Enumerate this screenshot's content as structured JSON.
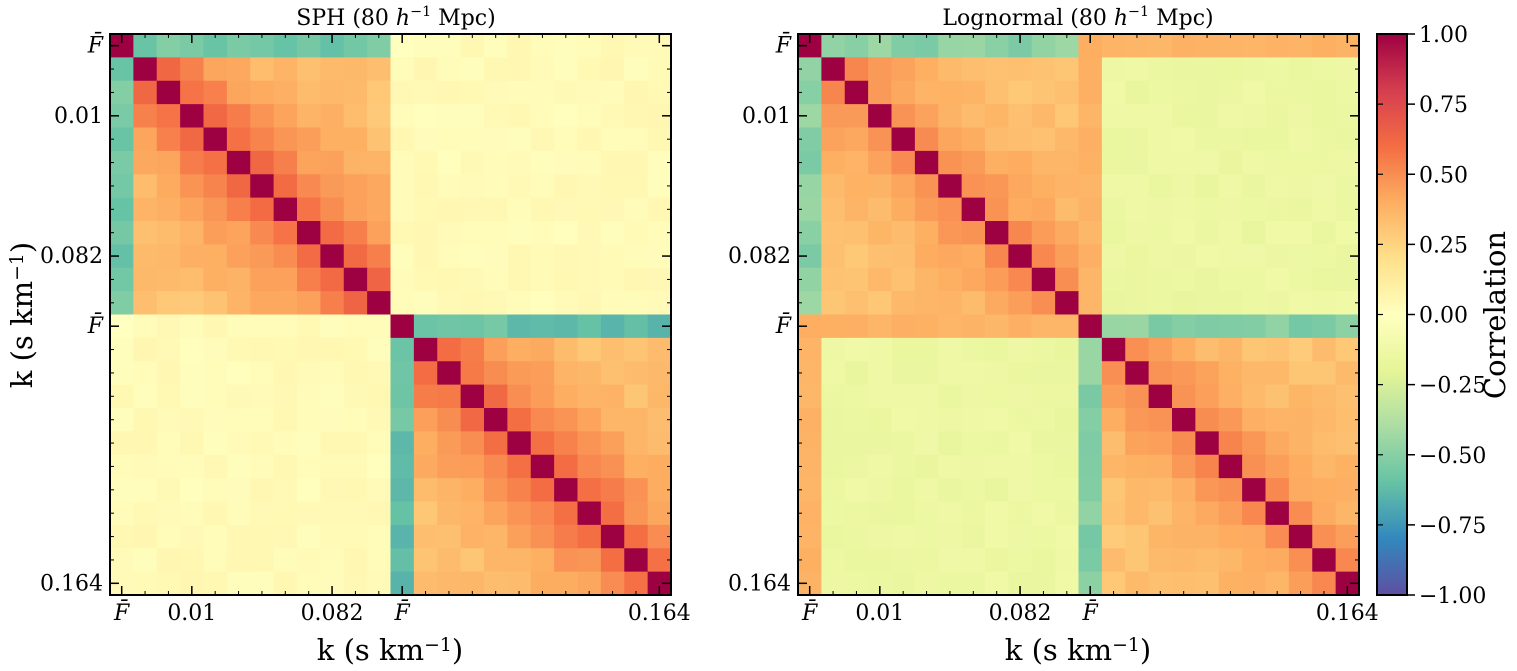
{
  "chart_data": [
    {
      "type": "heatmap",
      "title_parts": [
        "SPH (80 ",
        "h",
        "−1",
        " Mpc)"
      ],
      "xlabel_parts": [
        "k (s km",
        "−1",
        ")"
      ],
      "ylabel_parts": [
        "k (s km",
        "−1",
        ")"
      ],
      "tick_labels": [
        "F̄",
        "0.01",
        "0.082",
        "F̄",
        "0.164"
      ],
      "y_tick_labels": [
        "F̄",
        "0.01",
        "0.082",
        "F̄",
        "0.164"
      ],
      "blocks": 2,
      "cells_per_block": 12,
      "fbar_k_corr_block1": -0.55,
      "fbar_k_corr_block2": -0.6,
      "k_k_corr_near_diag": 0.6,
      "k_k_corr_far": 0.3,
      "cross_block_corr": 0.03,
      "fbar_fbar_cross_corr": 0.0
    },
    {
      "type": "heatmap",
      "title_parts": [
        "Lognormal (80 ",
        "h",
        "−1",
        " Mpc)"
      ],
      "xlabel_parts": [
        "k (s km",
        "−1",
        ")"
      ],
      "tick_labels": [
        "F̄",
        "0.01",
        "0.082",
        "F̄",
        "0.164"
      ],
      "y_tick_labels": [
        "F̄",
        "0.01",
        "0.082",
        "F̄",
        "0.164"
      ],
      "blocks": 2,
      "cells_per_block": 12,
      "fbar_k_corr_block1": -0.5,
      "fbar_k_corr_block2": -0.5,
      "k_k_corr_near_diag": 0.5,
      "k_k_corr_far": 0.3,
      "cross_block_corr": -0.15,
      "fbar_fbar_cross_corr": 0.4
    }
  ],
  "colorbar": {
    "label": "Correlation",
    "range": [
      -1.0,
      1.0
    ],
    "tick_labels": [
      "1.00",
      "0.75",
      "0.50",
      "0.25",
      "0.00",
      "−0.25",
      "−0.50",
      "−0.75",
      "−1.00"
    ],
    "tick_values": [
      1.0,
      0.75,
      0.5,
      0.25,
      0.0,
      -0.25,
      -0.5,
      -0.75,
      -1.0
    ],
    "colormap": "Spectral_r",
    "colors": [
      "#5e4fa2",
      "#3288bd",
      "#66c2a5",
      "#abdda4",
      "#e6f598",
      "#ffffbf",
      "#fee08b",
      "#fdae61",
      "#f46d43",
      "#d53e4f",
      "#9e0142"
    ]
  }
}
